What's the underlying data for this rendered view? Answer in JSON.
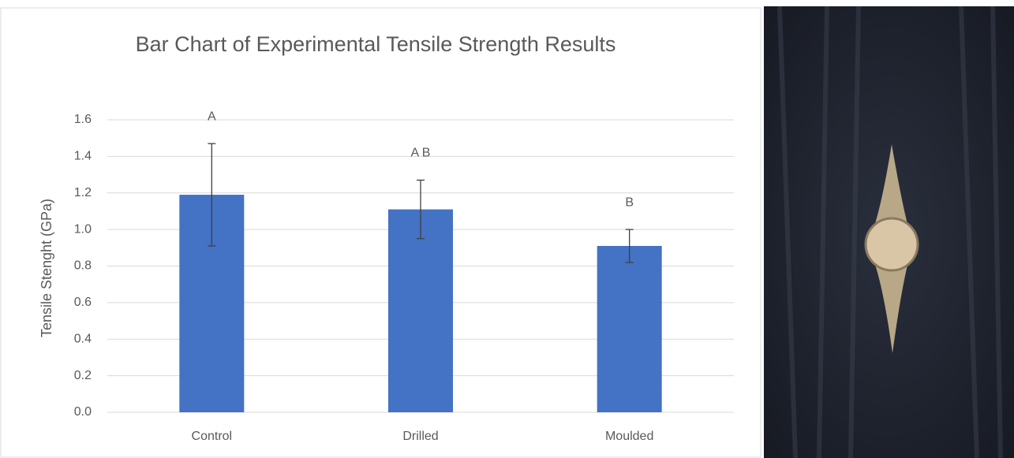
{
  "chart_data": {
    "type": "bar",
    "title": "Bar Chart of Experimental Tensile Strength Results",
    "y_label": "Tensile Stenght (GPa)",
    "categories": [
      "Control",
      "Drilled",
      "Moulded"
    ],
    "values": [
      1.19,
      1.11,
      0.91
    ],
    "errors": [
      0.28,
      0.16,
      0.09
    ],
    "annotations": [
      "A",
      "A B",
      "B"
    ],
    "color": "#4472c4",
    "error_color": "#404040",
    "ylim": [
      0,
      1.6
    ],
    "yticks": [
      {
        "value": 0,
        "label": "0.0"
      },
      0.2,
      0.4,
      0.6,
      0.8,
      {
        "value": 1,
        "label": "1.0"
      },
      1.2,
      1.4,
      1.6
    ],
    "grid": true
  }
}
